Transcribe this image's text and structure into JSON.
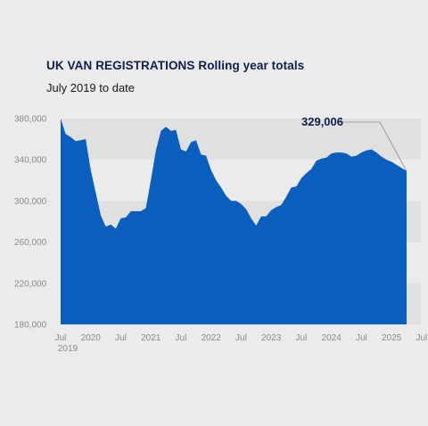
{
  "header": {
    "title": "UK VAN REGISTRATIONS Rolling year totals",
    "subtitle": "July 2019 to date"
  },
  "colors": {
    "area": "#0a5ebd",
    "background": "#ebebeb",
    "band": "#e0e0e0",
    "title": "#0f1e4d"
  },
  "chart_data": {
    "type": "area",
    "title": "UK VAN REGISTRATIONS Rolling year totals",
    "subtitle": "July 2019 to date",
    "xlabel": "",
    "ylabel": "",
    "ylim": [
      180000,
      380000
    ],
    "yticks": [
      {
        "value": 380000,
        "label": "380,000"
      },
      {
        "value": 340000,
        "label": "340,000"
      },
      {
        "value": 300000,
        "label": "300,000"
      },
      {
        "value": 260000,
        "label": "260,000"
      },
      {
        "value": 220000,
        "label": "220,000"
      },
      {
        "value": 180000,
        "label": "180,000"
      }
    ],
    "xticks": [
      {
        "month": 0,
        "label": "Jul"
      },
      {
        "month": 6,
        "label": "2020"
      },
      {
        "month": 12,
        "label": "Jul"
      },
      {
        "month": 18,
        "label": "2021"
      },
      {
        "month": 24,
        "label": "Jul"
      },
      {
        "month": 30,
        "label": "2022"
      },
      {
        "month": 36,
        "label": "Jul"
      },
      {
        "month": 42,
        "label": "2023"
      },
      {
        "month": 48,
        "label": "Jul"
      },
      {
        "month": 54,
        "label": "2024"
      },
      {
        "month": 60,
        "label": "Jul"
      },
      {
        "month": 66,
        "label": "2025"
      },
      {
        "month": 72,
        "label": "Jul"
      }
    ],
    "xticks_secondary": [
      {
        "month": 0,
        "label": "2019"
      }
    ],
    "series": [
      {
        "values": [
          380000,
          365000,
          362000,
          358000,
          359000,
          360000,
          330000,
          308000,
          286000,
          275000,
          277000,
          273000,
          283000,
          284000,
          290000,
          290000,
          290000,
          293000,
          320000,
          349000,
          368000,
          372000,
          368000,
          369000,
          350000,
          348000,
          357000,
          359000,
          345000,
          344000,
          330000,
          320000,
          313000,
          305000,
          300000,
          300000,
          297000,
          292000,
          283000,
          276000,
          285000,
          285000,
          291000,
          294000,
          296000,
          304000,
          313000,
          314000,
          322000,
          327000,
          331000,
          339000,
          341000,
          342000,
          346000,
          347000,
          347000,
          346000,
          343000,
          344000,
          347000,
          349000,
          350000,
          347000,
          343000,
          340000,
          338000,
          335000,
          332000,
          329006
        ]
      }
    ],
    "annotations": [
      {
        "text": "329,006",
        "point_index": 69
      }
    ],
    "grid": "alternating horizontal bands",
    "legend": "none"
  }
}
